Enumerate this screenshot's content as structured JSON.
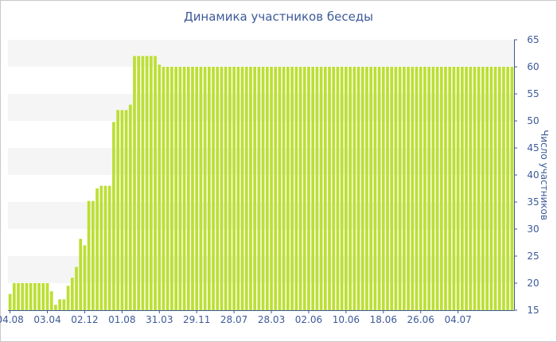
{
  "chart_data": {
    "type": "bar",
    "title": "Динамика участников беседы",
    "xlabel": "",
    "ylabel": "Число участников",
    "ylim": [
      15,
      65
    ],
    "yticks": [
      15,
      20,
      25,
      30,
      35,
      40,
      45,
      50,
      55,
      60,
      65
    ],
    "grid": "horizontal alternating bands",
    "y_axis_side": "right",
    "bar_color": "#bcdf34",
    "band_color": "#f5f5f5",
    "text_color": "#3d5a98",
    "axis_color": "#3d5a98",
    "x_tick_labels": [
      "04.08",
      "03.04",
      "02.12",
      "01.08",
      "31.03",
      "29.11",
      "28.07",
      "28.03",
      "02.06",
      "10.06",
      "18.06",
      "26.06",
      "04.07"
    ],
    "x_tick_bar_index": [
      0,
      9,
      18,
      27,
      36,
      45,
      54,
      63,
      72,
      81,
      90,
      99,
      108
    ],
    "series": [
      {
        "values": [
          18,
          20,
          20,
          20,
          20,
          20,
          20,
          20,
          20,
          20,
          18.5,
          16,
          17,
          17,
          19.5,
          21,
          23,
          28.2,
          27,
          35.2,
          35.2,
          37.5,
          38,
          38,
          38,
          49.8,
          52,
          52,
          52,
          53,
          62,
          62,
          62,
          62,
          62,
          62,
          60.4,
          60,
          60,
          60,
          60,
          60,
          60,
          60,
          60,
          60,
          60,
          60,
          60,
          60,
          60,
          60,
          60,
          60,
          60,
          60,
          60,
          60,
          60,
          60,
          60,
          60,
          60,
          60,
          60,
          60,
          60,
          60,
          60,
          60,
          60,
          60,
          60,
          60,
          60,
          60,
          60,
          60,
          60,
          60,
          60,
          60,
          60,
          60,
          60,
          60,
          60,
          60,
          60,
          60,
          60,
          60,
          60,
          60,
          60,
          60,
          60,
          60,
          60,
          60,
          60,
          60,
          60,
          60,
          60,
          60,
          60,
          60,
          60,
          60,
          60,
          60,
          60,
          60,
          60,
          60,
          60,
          60,
          60,
          60,
          60,
          60
        ]
      }
    ]
  }
}
